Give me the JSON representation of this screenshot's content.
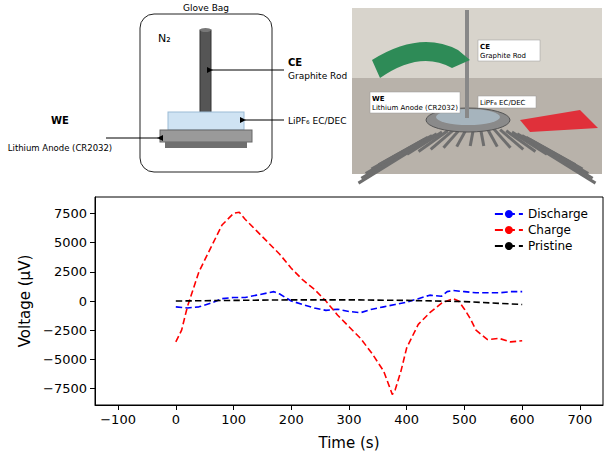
{
  "diagram": {
    "schematic": {
      "title": "Glove Bag",
      "atmosphere": "N₂",
      "ce": {
        "label": "CE",
        "text": "Graphite Rod"
      },
      "we": {
        "label": "WE",
        "text": "Lithium Anode (CR2032)"
      },
      "electrolyte": "LiPF₆ EC/DEC"
    },
    "photo": {
      "ce": {
        "label": "CE",
        "text": "Graphite Rod"
      },
      "we": {
        "label": "WE",
        "text": "Lithium Anode (CR2032)"
      },
      "electrolyte": "LiPF₆ EC/DEC"
    }
  },
  "chart_data": {
    "type": "line",
    "xlabel": "Time (s)",
    "ylabel": "Voltage (µV)",
    "xlim": [
      -140,
      740
    ],
    "xticks": [
      {
        "value": -100,
        "label": "−100"
      },
      0,
      100,
      200,
      300,
      400,
      500,
      600,
      700
    ],
    "ylim": [
      -8900,
      8900
    ],
    "yticks": [
      {
        "value": -7500,
        "label": "−7500"
      },
      {
        "value": -5000,
        "label": "−5000"
      },
      {
        "value": -2500,
        "label": "−2500"
      },
      0,
      2500,
      5000,
      7500
    ],
    "grid": false,
    "legend": "upper right",
    "series": [
      {
        "name": "Discharge",
        "color": "#0000ff",
        "line_style": "dashed",
        "x": [
          0,
          20,
          40,
          60,
          80,
          100,
          120,
          140,
          160,
          170,
          180,
          200,
          220,
          240,
          260,
          280,
          300,
          320,
          340,
          360,
          380,
          400,
          420,
          440,
          460,
          470,
          480,
          500,
          520,
          540,
          560,
          580,
          600
        ],
        "values": [
          -500,
          -600,
          -500,
          -200,
          200,
          300,
          300,
          500,
          700,
          800,
          600,
          0,
          -300,
          -600,
          -800,
          -700,
          -900,
          -1000,
          -700,
          -500,
          -300,
          -100,
          200,
          500,
          400,
          800,
          900,
          800,
          700,
          700,
          700,
          800,
          800
        ]
      },
      {
        "name": "Charge",
        "color": "#ff0000",
        "line_style": "dashed",
        "x": [
          0,
          10,
          20,
          40,
          60,
          80,
          100,
          110,
          120,
          140,
          160,
          180,
          200,
          220,
          240,
          260,
          280,
          300,
          320,
          340,
          360,
          375,
          380,
          390,
          400,
          420,
          440,
          460,
          480,
          490,
          500,
          510,
          520,
          540,
          560,
          580,
          600
        ],
        "values": [
          -3500,
          -2500,
          -500,
          2500,
          4500,
          6500,
          7500,
          7600,
          7000,
          6000,
          5000,
          4000,
          2800,
          1800,
          1000,
          0,
          -1200,
          -2200,
          -3200,
          -4500,
          -6000,
          -8000,
          -7600,
          -6000,
          -4000,
          -2000,
          -1000,
          -200,
          200,
          0,
          -700,
          -1500,
          -2500,
          -3300,
          -3200,
          -3500,
          -3400
        ]
      },
      {
        "name": "Pristine",
        "color": "#000000",
        "line_style": "dashed",
        "x": [
          0,
          100,
          200,
          300,
          400,
          500,
          600
        ],
        "values": [
          0,
          50,
          100,
          100,
          50,
          -50,
          -300
        ]
      }
    ]
  }
}
